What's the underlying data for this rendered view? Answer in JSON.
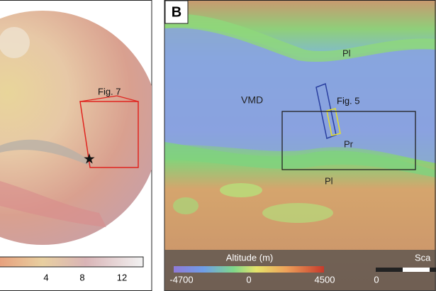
{
  "panel_a": {
    "inset_label": "Fig. 7",
    "colorbar_ticks": [
      "4",
      "8",
      "12"
    ]
  },
  "panel_b": {
    "panel_letter": "B",
    "labels": [
      "Pl",
      "VMD",
      "Fig. 5",
      "Pr",
      "Pl"
    ],
    "legend": {
      "title": "Altitude (m)",
      "ticks": [
        "-4700",
        "0",
        "4500"
      ]
    },
    "scale": {
      "title": "Sca",
      "start": "0"
    }
  }
}
